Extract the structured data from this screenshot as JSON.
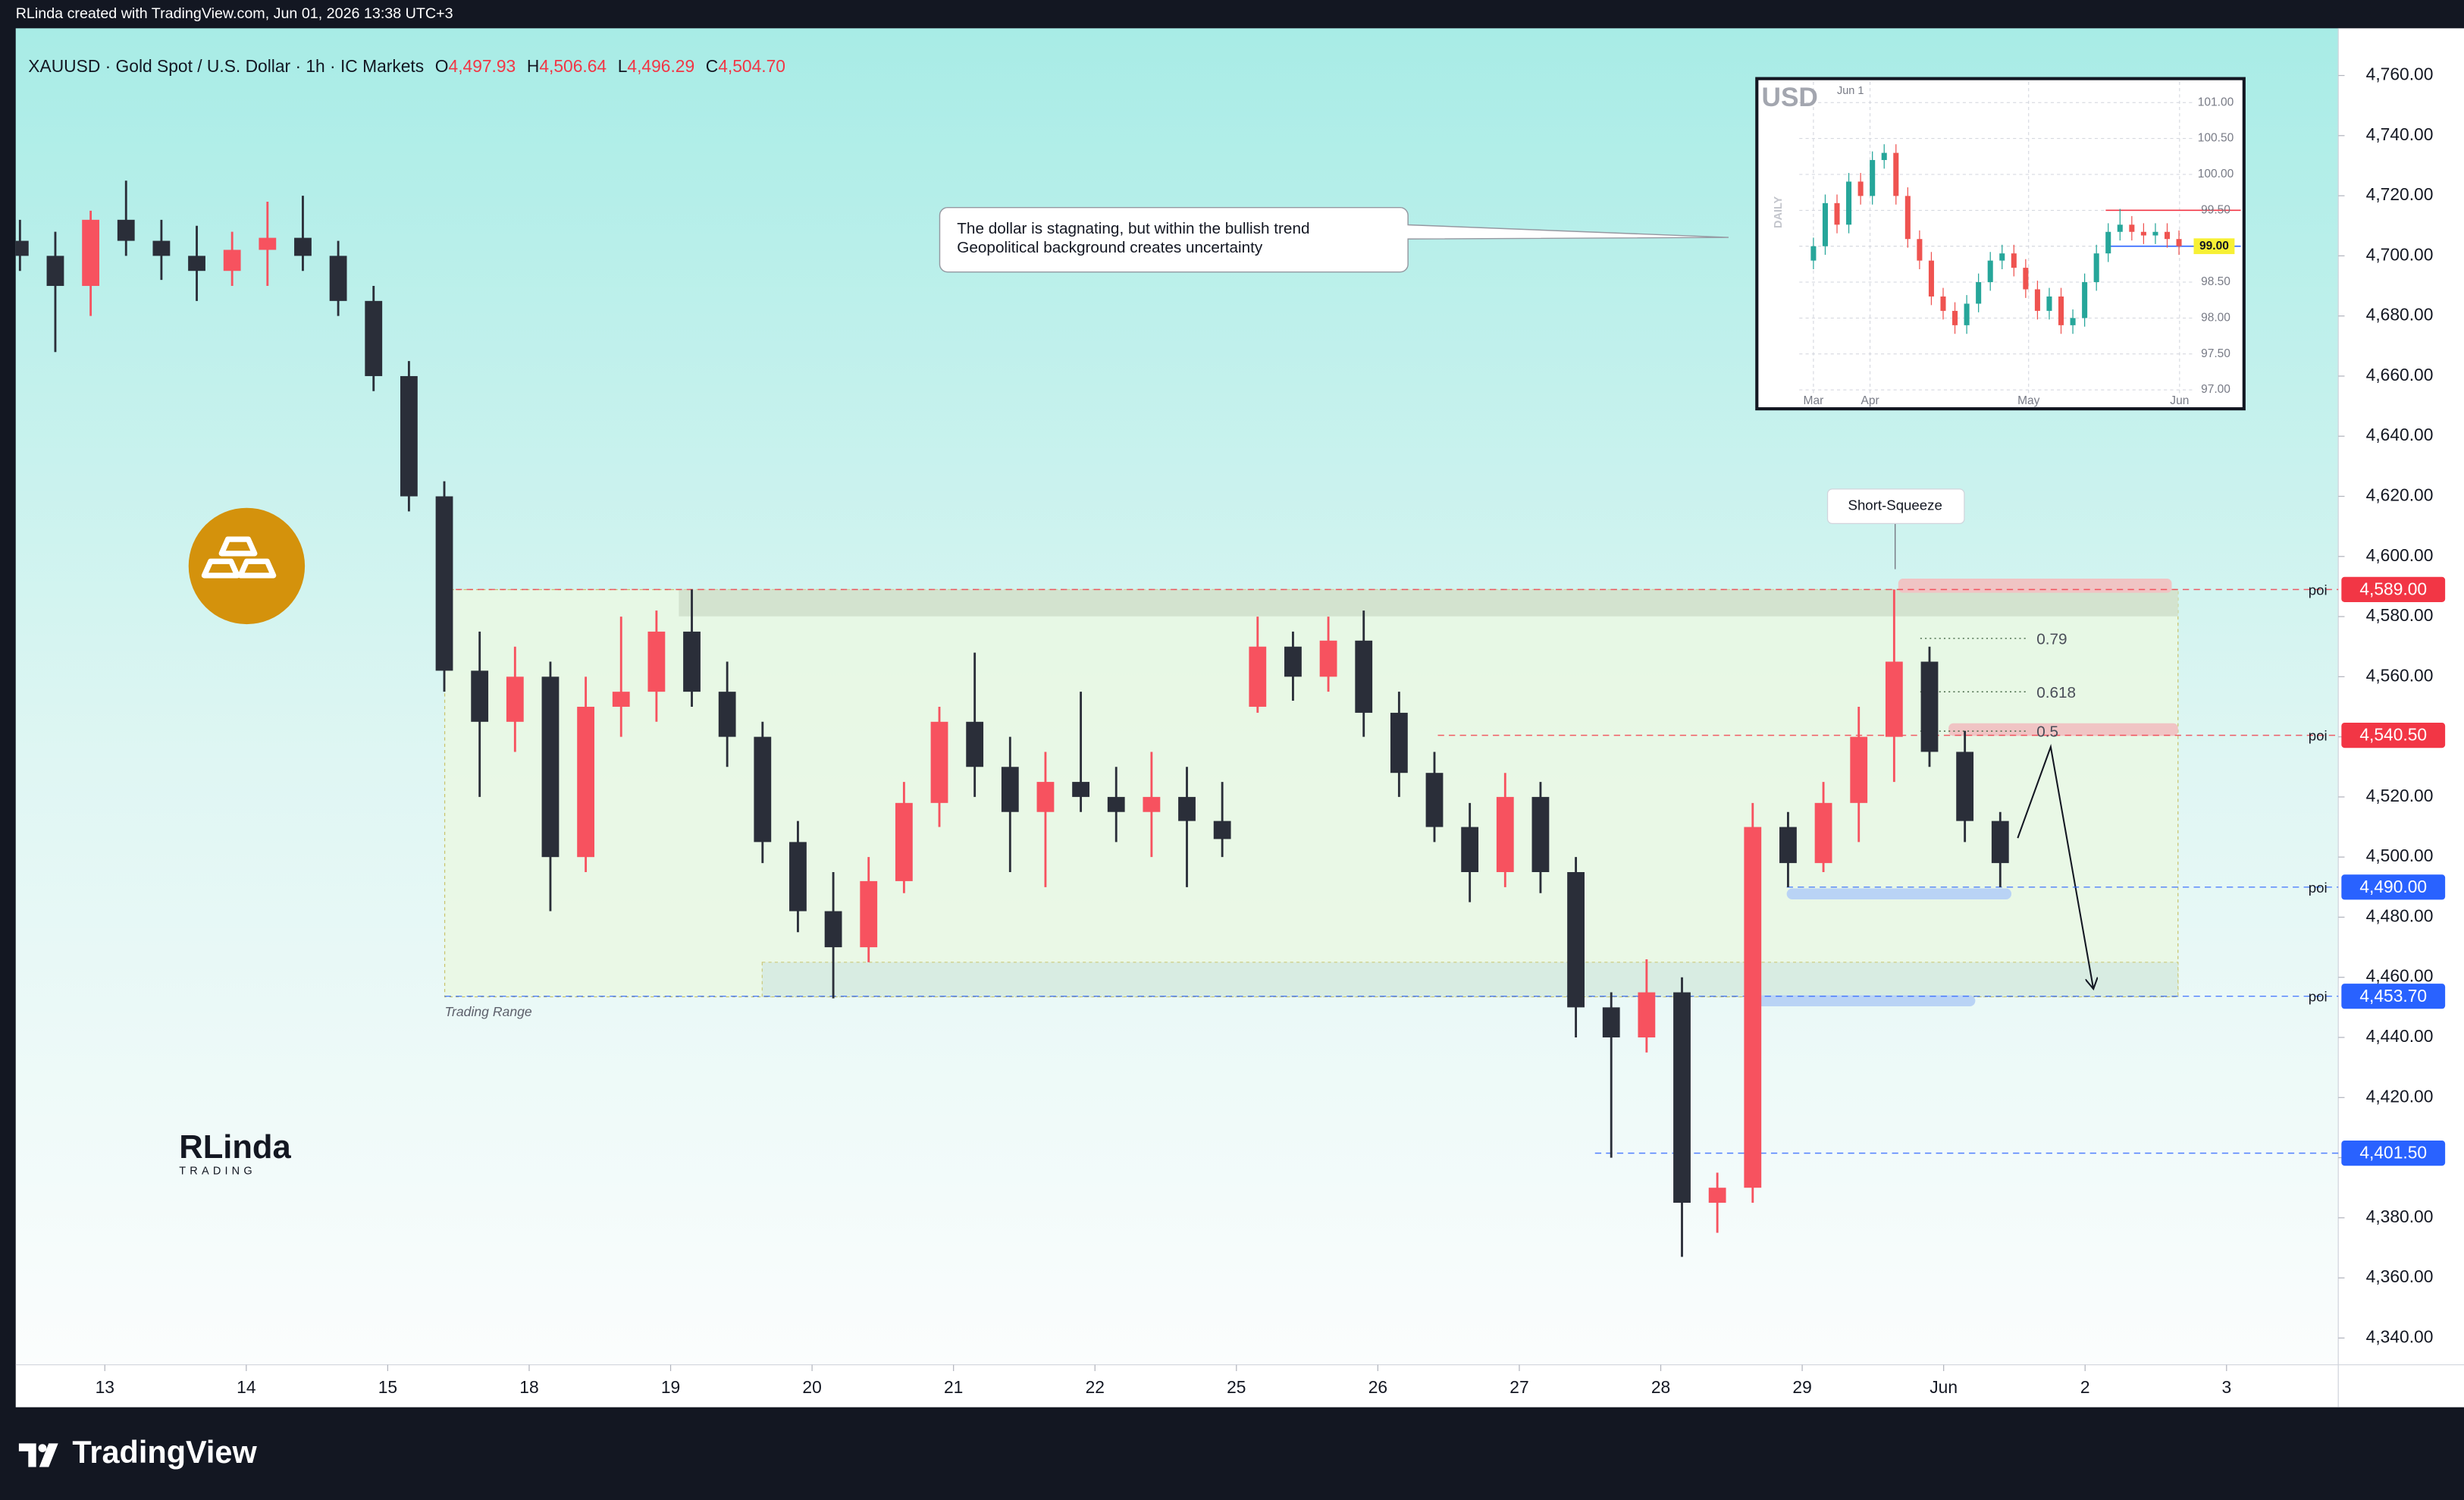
{
  "header": {
    "credit": "RLinda created with TradingView.com, Jun 01, 2026 13:38 UTC+3"
  },
  "legend": {
    "symbol": "XAUUSD · Gold Spot / U.S. Dollar · 1h · IC Markets",
    "ohlc": [
      {
        "key": "O",
        "value": 4497.93,
        "label": "4,497.93"
      },
      {
        "key": "H",
        "value": 4506.64,
        "label": "4,506.64"
      },
      {
        "key": "L",
        "value": 4496.29,
        "label": "4,496.29"
      },
      {
        "key": "C",
        "value": 4504.7,
        "label": "4,504.70"
      }
    ]
  },
  "logo": {
    "name": "RLinda",
    "sub": "TRADING"
  },
  "footer": {
    "brand": "TradingView"
  },
  "chart_data": [
    {
      "type": "candlestick",
      "up_color": "#f7525f",
      "down_color": "#2a2e39",
      "xlim": [
        -0.63,
        15.79
      ],
      "ylim": [
        4331.1,
        4775.7
      ],
      "xticks": [
        {
          "value": 0,
          "label": "13"
        },
        {
          "value": 1,
          "label": "14"
        },
        {
          "value": 2,
          "label": "15"
        },
        {
          "value": 3,
          "label": "18"
        },
        {
          "value": 4,
          "label": "19"
        },
        {
          "value": 5,
          "label": "20"
        },
        {
          "value": 6,
          "label": "21"
        },
        {
          "value": 7,
          "label": "22"
        },
        {
          "value": 8,
          "label": "25"
        },
        {
          "value": 9,
          "label": "26"
        },
        {
          "value": 10,
          "label": "27"
        },
        {
          "value": 11,
          "label": "28"
        },
        {
          "value": 12,
          "label": "29"
        },
        {
          "value": 13,
          "label": "Jun"
        },
        {
          "value": 14,
          "label": "2"
        },
        {
          "value": 15,
          "label": "3"
        }
      ],
      "yticks": [
        {
          "value": 4340,
          "label": "4,340.00"
        },
        {
          "value": 4360,
          "label": "4,360.00"
        },
        {
          "value": 4380,
          "label": "4,380.00"
        },
        {
          "value": 4400,
          "label": "4,400.00"
        },
        {
          "value": 4420,
          "label": "4,420.00"
        },
        {
          "value": 4440,
          "label": "4,440.00"
        },
        {
          "value": 4460,
          "label": "4,460.00"
        },
        {
          "value": 4480,
          "label": "4,480.00"
        },
        {
          "value": 4500,
          "label": "4,500.00"
        },
        {
          "value": 4520,
          "label": "4,520.00"
        },
        {
          "value": 4540,
          "label": "4,540.00"
        },
        {
          "value": 4560,
          "label": "4,560.00"
        },
        {
          "value": 4580,
          "label": "4,580.00"
        },
        {
          "value": 4600,
          "label": "4,600.00"
        },
        {
          "value": 4620,
          "label": "4,620.00"
        },
        {
          "value": 4640,
          "label": "4,640.00"
        },
        {
          "value": 4660,
          "label": "4,660.00"
        },
        {
          "value": 4680,
          "label": "4,680.00"
        },
        {
          "value": 4700,
          "label": "4,700.00"
        },
        {
          "value": 4720,
          "label": "4,720.00"
        },
        {
          "value": 4740,
          "label": "4,740.00"
        },
        {
          "value": 4760,
          "label": "4,760.00"
        }
      ],
      "x": [
        -0.6,
        -0.35,
        -0.1,
        0.15,
        0.4,
        0.65,
        0.9,
        1.15,
        1.4,
        1.65,
        1.9,
        2.15,
        2.4,
        2.65,
        2.9,
        3.15,
        3.4,
        3.65,
        3.9,
        4.15,
        4.4,
        4.65,
        4.9,
        5.15,
        5.4,
        5.65,
        5.9,
        6.15,
        6.4,
        6.65,
        6.9,
        7.15,
        7.4,
        7.65,
        7.9,
        8.15,
        8.4,
        8.65,
        8.9,
        9.15,
        9.4,
        9.65,
        9.9,
        10.15,
        10.4,
        10.65,
        10.9,
        11.15,
        11.4,
        11.65,
        11.9,
        12.15,
        12.4,
        12.65,
        12.9,
        13.15,
        13.4
      ],
      "ohlc": [
        [
          4705,
          4712,
          4695,
          4700
        ],
        [
          4700,
          4708,
          4668,
          4690
        ],
        [
          4690,
          4715,
          4680,
          4712
        ],
        [
          4712,
          4725,
          4700,
          4705
        ],
        [
          4705,
          4712,
          4692,
          4700
        ],
        [
          4700,
          4710,
          4685,
          4695
        ],
        [
          4695,
          4708,
          4690,
          4702
        ],
        [
          4702,
          4718,
          4690,
          4706
        ],
        [
          4706,
          4720,
          4695,
          4700
        ],
        [
          4700,
          4705,
          4680,
          4685
        ],
        [
          4685,
          4690,
          4655,
          4660
        ],
        [
          4660,
          4665,
          4615,
          4620
        ],
        [
          4620,
          4625,
          4555,
          4562
        ],
        [
          4562,
          4575,
          4520,
          4545
        ],
        [
          4545,
          4570,
          4535,
          4560
        ],
        [
          4560,
          4565,
          4482,
          4500
        ],
        [
          4500,
          4560,
          4495,
          4550
        ],
        [
          4550,
          4580,
          4540,
          4555
        ],
        [
          4555,
          4582,
          4545,
          4575
        ],
        [
          4575,
          4589,
          4550,
          4555
        ],
        [
          4555,
          4565,
          4530,
          4540
        ],
        [
          4540,
          4545,
          4498,
          4505
        ],
        [
          4505,
          4512,
          4475,
          4482
        ],
        [
          4482,
          4495,
          4453,
          4470
        ],
        [
          4470,
          4500,
          4465,
          4492
        ],
        [
          4492,
          4525,
          4488,
          4518
        ],
        [
          4518,
          4550,
          4510,
          4545
        ],
        [
          4545,
          4568,
          4520,
          4530
        ],
        [
          4530,
          4540,
          4495,
          4515
        ],
        [
          4515,
          4535,
          4490,
          4525
        ],
        [
          4525,
          4555,
          4515,
          4520
        ],
        [
          4520,
          4530,
          4505,
          4515
        ],
        [
          4515,
          4535,
          4500,
          4520
        ],
        [
          4520,
          4530,
          4490,
          4512
        ],
        [
          4512,
          4525,
          4500,
          4506
        ],
        [
          4550,
          4580,
          4548,
          4570
        ],
        [
          4570,
          4575,
          4552,
          4560
        ],
        [
          4560,
          4580,
          4555,
          4572
        ],
        [
          4572,
          4582,
          4540,
          4548
        ],
        [
          4548,
          4555,
          4520,
          4528
        ],
        [
          4528,
          4535,
          4505,
          4510
        ],
        [
          4510,
          4518,
          4485,
          4495
        ],
        [
          4495,
          4528,
          4490,
          4520
        ],
        [
          4520,
          4525,
          4488,
          4495
        ],
        [
          4495,
          4500,
          4440,
          4450
        ],
        [
          4450,
          4455,
          4400,
          4440
        ],
        [
          4440,
          4466,
          4435,
          4455
        ],
        [
          4455,
          4460,
          4367,
          4385
        ],
        [
          4385,
          4395,
          4375,
          4390
        ],
        [
          4390,
          4518,
          4385,
          4510
        ],
        [
          4510,
          4515,
          4490,
          4498
        ],
        [
          4498,
          4525,
          4495,
          4518
        ],
        [
          4518,
          4550,
          4505,
          4540
        ],
        [
          4540,
          4589,
          4525,
          4565
        ],
        [
          4565,
          4570,
          4530,
          4535
        ],
        [
          4535,
          4542,
          4505,
          4512
        ],
        [
          4512,
          4515,
          4490,
          4498
        ]
      ],
      "levels": [
        {
          "value": 4589.0,
          "label": "4,589.00",
          "color": "#f23645",
          "note": "poi"
        },
        {
          "value": 4540.5,
          "label": "4,540.50",
          "color": "#f23645",
          "note": "poi"
        },
        {
          "value": 4490.0,
          "label": "4,490.00",
          "color": "#2962ff",
          "note": "poi"
        },
        {
          "value": 4453.7,
          "label": "4,453.70",
          "color": "#2962ff",
          "note": "poi"
        },
        {
          "value": 4401.5,
          "label": "4,401.50",
          "color": "#2962ff"
        }
      ],
      "fib": [
        0.79,
        0.618,
        0.5
      ],
      "annotations": {
        "short_squeeze": "Short-Squeeze",
        "range_label": "Trading Range",
        "note": [
          "The dollar is stagnating, but within the bullish trend",
          "Geopolitical background creates uncertainty"
        ]
      }
    },
    {
      "type": "candlestick",
      "title": "USD",
      "subtitle": "Jun 1",
      "y_label": "DAILY",
      "up_color": "#26a69a",
      "down_color": "#ef5350",
      "xlim": [
        -2.4,
        63.7
      ],
      "ylim": [
        96.78,
        101.29
      ],
      "xticks": [
        {
          "value": 0,
          "label": "Mar"
        },
        {
          "value": 9.6,
          "label": "Apr"
        },
        {
          "value": 36.5,
          "label": "May"
        },
        {
          "value": 62.1,
          "label": "Jun"
        }
      ],
      "yticks": [
        {
          "value": 97,
          "label": "97.00"
        },
        {
          "value": 97.5,
          "label": "97.50"
        },
        {
          "value": 98,
          "label": "98.00"
        },
        {
          "value": 98.5,
          "label": "98.50"
        },
        {
          "value": 99,
          "label": "99.00"
        },
        {
          "value": 99.5,
          "label": "99.50"
        },
        {
          "value": 100,
          "label": "100.00"
        },
        {
          "value": 100.5,
          "label": "100.50"
        },
        {
          "value": 101,
          "label": "101.00"
        }
      ],
      "x": [
        0,
        2,
        4,
        6,
        8,
        10,
        12,
        14,
        16,
        18,
        20,
        22,
        24,
        26,
        28,
        30,
        32,
        34,
        36,
        38,
        40,
        42,
        44,
        46,
        48,
        50,
        52,
        54,
        56,
        58,
        60,
        62
      ],
      "ohlc": [
        [
          98.8,
          99.12,
          98.68,
          99.0
        ],
        [
          99.0,
          99.72,
          98.88,
          99.6
        ],
        [
          99.6,
          99.72,
          99.18,
          99.3
        ],
        [
          99.3,
          100.02,
          99.18,
          99.9
        ],
        [
          99.9,
          100.02,
          99.58,
          99.7
        ],
        [
          99.7,
          100.32,
          99.58,
          100.2
        ],
        [
          100.2,
          100.42,
          100.08,
          100.3
        ],
        [
          100.3,
          100.42,
          99.58,
          99.7
        ],
        [
          99.7,
          99.82,
          98.98,
          99.1
        ],
        [
          99.1,
          99.22,
          98.68,
          98.8
        ],
        [
          98.8,
          98.92,
          98.18,
          98.3
        ],
        [
          98.3,
          98.42,
          97.98,
          98.1
        ],
        [
          98.1,
          98.22,
          97.78,
          97.9
        ],
        [
          97.9,
          98.32,
          97.78,
          98.2
        ],
        [
          98.2,
          98.62,
          98.08,
          98.5
        ],
        [
          98.5,
          98.92,
          98.38,
          98.8
        ],
        [
          98.8,
          99.02,
          98.68,
          98.9
        ],
        [
          98.9,
          99.02,
          98.58,
          98.7
        ],
        [
          98.7,
          98.82,
          98.28,
          98.4
        ],
        [
          98.4,
          98.52,
          97.98,
          98.1
        ],
        [
          98.1,
          98.42,
          97.98,
          98.3
        ],
        [
          98.3,
          98.42,
          97.78,
          97.9
        ],
        [
          97.9,
          98.12,
          97.78,
          98.0
        ],
        [
          98.0,
          98.62,
          97.88,
          98.5
        ],
        [
          98.5,
          99.02,
          98.38,
          98.9
        ],
        [
          98.9,
          99.32,
          98.78,
          99.2
        ],
        [
          99.2,
          99.52,
          99.08,
          99.3
        ],
        [
          99.3,
          99.42,
          99.08,
          99.2
        ],
        [
          99.2,
          99.32,
          99.03,
          99.15
        ],
        [
          99.15,
          99.32,
          99.03,
          99.2
        ],
        [
          99.2,
          99.32,
          98.98,
          99.1
        ],
        [
          99.1,
          99.22,
          98.88,
          99.0
        ]
      ],
      "levels": [
        {
          "value": 99.5,
          "color": "#f23645"
        },
        {
          "value": 99.0,
          "color": "#2962ff"
        }
      ],
      "last_price": {
        "value": 99.0,
        "label": "99.00"
      }
    }
  ]
}
